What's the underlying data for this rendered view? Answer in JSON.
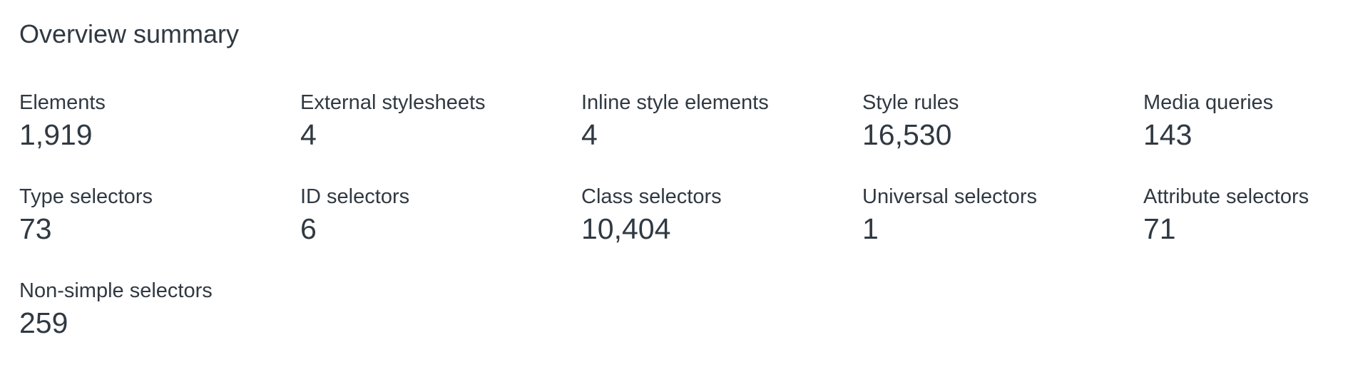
{
  "summary": {
    "title": "Overview summary",
    "stats": [
      {
        "label": "Elements",
        "value": "1,919"
      },
      {
        "label": "External stylesheets",
        "value": "4"
      },
      {
        "label": "Inline style elements",
        "value": "4"
      },
      {
        "label": "Style rules",
        "value": "16,530"
      },
      {
        "label": "Media queries",
        "value": "143"
      },
      {
        "label": "Type selectors",
        "value": "73"
      },
      {
        "label": "ID selectors",
        "value": "6"
      },
      {
        "label": "Class selectors",
        "value": "10,404"
      },
      {
        "label": "Universal selectors",
        "value": "1"
      },
      {
        "label": "Attribute selectors",
        "value": "71"
      },
      {
        "label": "Non-simple selectors",
        "value": "259"
      }
    ]
  }
}
